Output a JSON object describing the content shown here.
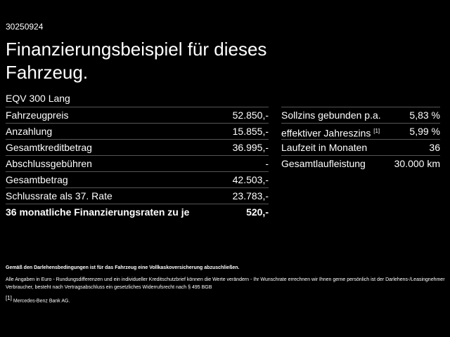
{
  "header": {
    "id": "30250924",
    "title": "Finanzierungsbeispiel für dieses Fahrzeug.",
    "model": "EQV 300 Lang"
  },
  "left_table": {
    "rows": [
      [
        "Fahrzeugpreis",
        "52.850,-"
      ],
      [
        "Anzahlung",
        "15.855,-"
      ],
      [
        "Gesamtkreditbetrag",
        "36.995,-"
      ],
      [
        "Abschlussgebühren",
        "-"
      ],
      [
        "Gesamtbetrag",
        "42.503,-"
      ],
      [
        "Schlussrate als 37. Rate",
        "23.783,-"
      ],
      [
        "36 monatliche Finanzierungsraten zu je",
        "520,-"
      ]
    ]
  },
  "right_table": {
    "rows": [
      [
        "Sollzins gebunden p.a.",
        "5,83 %"
      ],
      [
        "effektiver Jahreszins",
        "5,99 %"
      ],
      [
        "Laufzeit in Monaten",
        "36"
      ],
      [
        "Gesamtlaufleistung",
        "30.000 km"
      ]
    ],
    "footnote_ref": "[1]"
  },
  "footnotes": {
    "insurance": "Gemäß den Darlehensbedingungen ist für das Fahrzeug eine Vollkaskoversicherung abzuschließen.",
    "disclaimer": "Alle Angaben in Euro - Rundungsdifferenzen und ein individueller Kreditschutzbrief können die Werte verändern - Ihr Wunschrate errechnen wir Ihnen gerne persönlich ist der Darlehens-/Leasingnehmer Verbraucher, besteht nach Vertragsabschluss ein gesetzliches Widerrufsrecht nach § 495 BGB",
    "ref_mark": "[1]",
    "ref_text": "Mercedes-Benz Bank AG."
  }
}
